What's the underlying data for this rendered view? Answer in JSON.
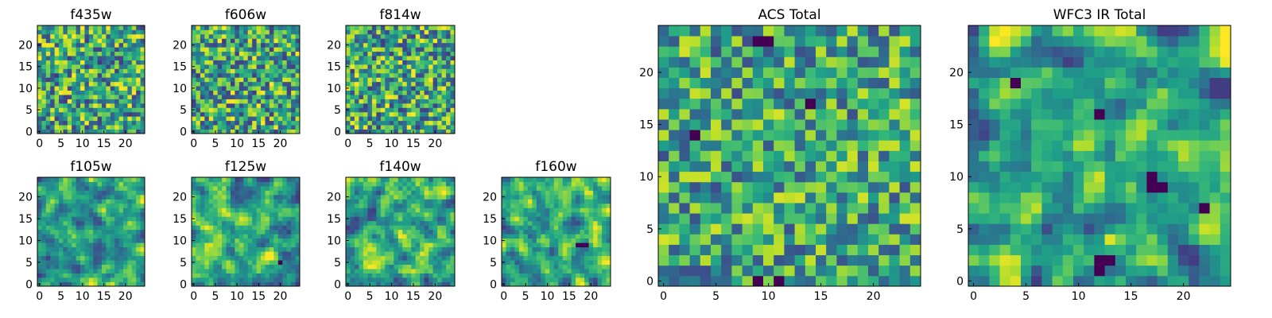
{
  "chart_data": [
    {
      "type": "heatmap",
      "title": "f435w",
      "size": 25,
      "x_ticks": [
        "0",
        "5",
        "10",
        "15",
        "20"
      ],
      "y_ticks": [
        "0",
        "5",
        "10",
        "15",
        "20"
      ],
      "seed": 11,
      "smooth": 0,
      "contrast": 1.0,
      "dark_blobs": []
    },
    {
      "type": "heatmap",
      "title": "f606w",
      "size": 25,
      "x_ticks": [
        "0",
        "5",
        "10",
        "15",
        "20"
      ],
      "y_ticks": [
        "0",
        "5",
        "10",
        "15",
        "20"
      ],
      "seed": 23,
      "smooth": 0,
      "contrast": 1.0,
      "dark_blobs": []
    },
    {
      "type": "heatmap",
      "title": "f814w",
      "size": 25,
      "x_ticks": [
        "0",
        "5",
        "10",
        "15",
        "20"
      ],
      "y_ticks": [
        "0",
        "5",
        "10",
        "15",
        "20"
      ],
      "seed": 37,
      "smooth": 0,
      "contrast": 1.0,
      "dark_blobs": []
    },
    {
      "type": "heatmap",
      "title": "f105w",
      "size": 25,
      "x_ticks": [
        "0",
        "5",
        "10",
        "15",
        "20"
      ],
      "y_ticks": [
        "0",
        "5",
        "10",
        "15",
        "20"
      ],
      "seed": 41,
      "smooth": 1,
      "contrast": 1.15,
      "dark_blobs": []
    },
    {
      "type": "heatmap",
      "title": "f125w",
      "size": 25,
      "x_ticks": [
        "0",
        "5",
        "10",
        "15",
        "20"
      ],
      "y_ticks": [
        "0",
        "5",
        "10",
        "15",
        "20"
      ],
      "seed": 53,
      "smooth": 1,
      "contrast": 1.15,
      "dark_blobs": [
        [
          20,
          5
        ]
      ]
    },
    {
      "type": "heatmap",
      "title": "f140w",
      "size": 25,
      "x_ticks": [
        "0",
        "5",
        "10",
        "15",
        "20"
      ],
      "y_ticks": [
        "0",
        "5",
        "10",
        "15",
        "20"
      ],
      "seed": 67,
      "smooth": 1,
      "contrast": 1.15,
      "dark_blobs": []
    },
    {
      "type": "heatmap",
      "title": "f160w",
      "size": 25,
      "x_ticks": [
        "0",
        "5",
        "10",
        "15",
        "20"
      ],
      "y_ticks": [
        "0",
        "5",
        "10",
        "15",
        "20"
      ],
      "seed": 79,
      "smooth": 1,
      "contrast": 1.2,
      "dark_blobs": [
        [
          17,
          9
        ],
        [
          18,
          9
        ],
        [
          19,
          9
        ]
      ]
    },
    {
      "type": "heatmap",
      "title": "ACS Total",
      "size": 25,
      "x_ticks": [
        "0",
        "5",
        "10",
        "15",
        "20"
      ],
      "y_ticks": [
        "0",
        "5",
        "10",
        "15",
        "20"
      ],
      "seed": 97,
      "smooth": 0,
      "contrast": 0.85,
      "dark_blobs": [
        [
          9,
          23
        ],
        [
          10,
          23
        ],
        [
          14,
          17
        ],
        [
          3,
          14
        ],
        [
          9,
          0
        ],
        [
          11,
          0
        ]
      ]
    },
    {
      "type": "heatmap",
      "title": "WFC3 IR Total",
      "size": 25,
      "x_ticks": [
        "0",
        "5",
        "10",
        "15",
        "20"
      ],
      "y_ticks": [
        "0",
        "5",
        "10",
        "15",
        "20"
      ],
      "seed": 113,
      "smooth": 1,
      "contrast": 1.25,
      "dark_blobs": [
        [
          17,
          9
        ],
        [
          18,
          9
        ],
        [
          17,
          10
        ],
        [
          12,
          16
        ],
        [
          12,
          2
        ],
        [
          13,
          2
        ],
        [
          12,
          1
        ],
        [
          4,
          19
        ],
        [
          22,
          7
        ]
      ]
    }
  ]
}
